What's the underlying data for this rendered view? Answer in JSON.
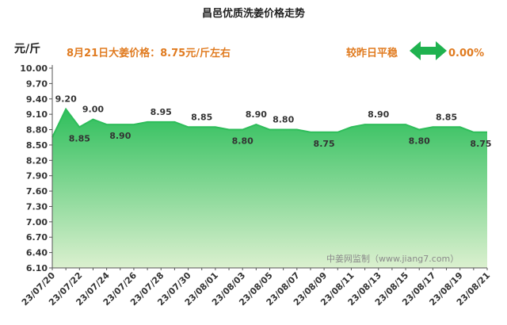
{
  "chart_data": {
    "type": "area",
    "title": "昌邑优质洗姜价格走势",
    "ylabel": "元/斤",
    "ylim": [
      6.1,
      10.0
    ],
    "yticks": [
      "6.10",
      "6.40",
      "6.70",
      "7.00",
      "7.30",
      "7.60",
      "7.90",
      "8.20",
      "8.50",
      "8.80",
      "9.10",
      "9.40",
      "9.70",
      "10.00"
    ],
    "x": [
      "23/07/20",
      "23/07/21",
      "23/07/22",
      "23/07/23",
      "23/07/24",
      "23/07/25",
      "23/07/26",
      "23/07/27",
      "23/07/28",
      "23/07/29",
      "23/07/30",
      "23/07/31",
      "23/08/01",
      "23/08/02",
      "23/08/03",
      "23/08/04",
      "23/08/05",
      "23/08/06",
      "23/08/07",
      "23/08/08",
      "23/08/09",
      "23/08/10",
      "23/08/11",
      "23/08/12",
      "23/08/13",
      "23/08/14",
      "23/08/15",
      "23/08/16",
      "23/08/17",
      "23/08/18",
      "23/08/19",
      "23/08/20",
      "23/08/21"
    ],
    "xtick_labels": [
      "23/07/20",
      "23/07/22",
      "23/07/24",
      "23/07/26",
      "23/07/28",
      "23/07/30",
      "23/08/01",
      "23/08/03",
      "23/08/05",
      "23/08/07",
      "23/08/09",
      "23/08/11",
      "23/08/13",
      "23/08/15",
      "23/08/17",
      "23/08/19",
      "23/08/21"
    ],
    "values": [
      8.65,
      9.2,
      8.85,
      9.0,
      8.9,
      8.9,
      8.9,
      8.95,
      8.95,
      8.95,
      8.85,
      8.85,
      8.85,
      8.8,
      8.8,
      8.9,
      8.8,
      8.8,
      8.8,
      8.75,
      8.75,
      8.75,
      8.85,
      8.9,
      8.9,
      8.9,
      8.9,
      8.8,
      8.85,
      8.85,
      8.85,
      8.75,
      8.75
    ],
    "data_labels": [
      {
        "x": "23/07/21",
        "text": "9.20",
        "pos": "above"
      },
      {
        "x": "23/07/22",
        "text": "8.85",
        "pos": "below"
      },
      {
        "x": "23/07/23",
        "text": "9.00",
        "pos": "above"
      },
      {
        "x": "23/07/25",
        "text": "8.90",
        "pos": "below"
      },
      {
        "x": "23/07/28",
        "text": "8.95",
        "pos": "above"
      },
      {
        "x": "23/07/31",
        "text": "8.85",
        "pos": "above"
      },
      {
        "x": "23/08/03",
        "text": "8.80",
        "pos": "below"
      },
      {
        "x": "23/08/04",
        "text": "8.90",
        "pos": "above"
      },
      {
        "x": "23/08/06",
        "text": "8.80",
        "pos": "above"
      },
      {
        "x": "23/08/09",
        "text": "8.75",
        "pos": "below"
      },
      {
        "x": "23/08/13",
        "text": "8.90",
        "pos": "above"
      },
      {
        "x": "23/08/16",
        "text": "8.80",
        "pos": "below"
      },
      {
        "x": "23/08/18",
        "text": "8.85",
        "pos": "above"
      },
      {
        "x": "23/08/21",
        "text": "8.75",
        "pos": "below"
      }
    ],
    "annotation_price": "8月21日大姜价格：8.75元/斤左右",
    "annotation_change_label": "较昨日平稳",
    "annotation_change_value": "0.00%",
    "watermark": "中姜网监制（www.jiang7.com）",
    "grid": false,
    "colors": {
      "line": "#2ebd5a",
      "fill_top": "#2fbf5c",
      "fill_bottom": "#dbf0cf",
      "accent_text": "#e07b20",
      "arrow": "#1fb24f"
    }
  }
}
